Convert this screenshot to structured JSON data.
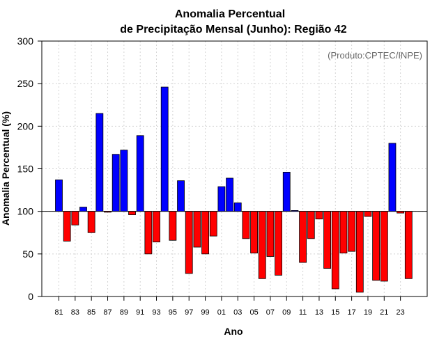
{
  "chart_data": {
    "type": "bar",
    "title_line1": "Anomalia Percentual",
    "title_line2": "de Precipitação Mensal (Junho): Região 42",
    "xlabel": "Ano",
    "ylabel": "Anomalia Percentual (%)",
    "annotation": "(Produto:CPTEC/INPE)",
    "ylim": [
      0,
      300
    ],
    "yticks": [
      0,
      50,
      100,
      150,
      200,
      250,
      300
    ],
    "baseline": 100,
    "grid": true,
    "colors": {
      "above": "#0000ff",
      "below": "#ff0000",
      "edge": "#000000",
      "grid": "#d3d3d3"
    },
    "categories": [
      "81",
      "82",
      "83",
      "84",
      "85",
      "86",
      "87",
      "88",
      "89",
      "90",
      "91",
      "92",
      "93",
      "94",
      "95",
      "96",
      "97",
      "98",
      "99",
      "00",
      "01",
      "02",
      "03",
      "04",
      "05",
      "06",
      "07",
      "08",
      "09",
      "10",
      "11",
      "12",
      "13",
      "14",
      "15",
      "16",
      "17",
      "18",
      "19",
      "20",
      "21",
      "22",
      "23",
      "24"
    ],
    "xtick_labels": [
      "81",
      "83",
      "85",
      "87",
      "89",
      "91",
      "93",
      "95",
      "97",
      "99",
      "01",
      "03",
      "05",
      "07",
      "09",
      "11",
      "13",
      "15",
      "17",
      "19",
      "21",
      "23"
    ],
    "values": [
      137,
      65,
      84,
      105,
      75,
      215,
      99,
      167,
      172,
      96,
      189,
      50,
      64,
      246,
      66,
      136,
      27,
      58,
      50,
      71,
      129,
      139,
      110,
      68,
      51,
      21,
      47,
      25,
      146,
      101,
      40,
      68,
      91,
      33,
      9,
      51,
      53,
      5,
      94,
      19,
      18,
      180,
      98,
      21
    ]
  }
}
